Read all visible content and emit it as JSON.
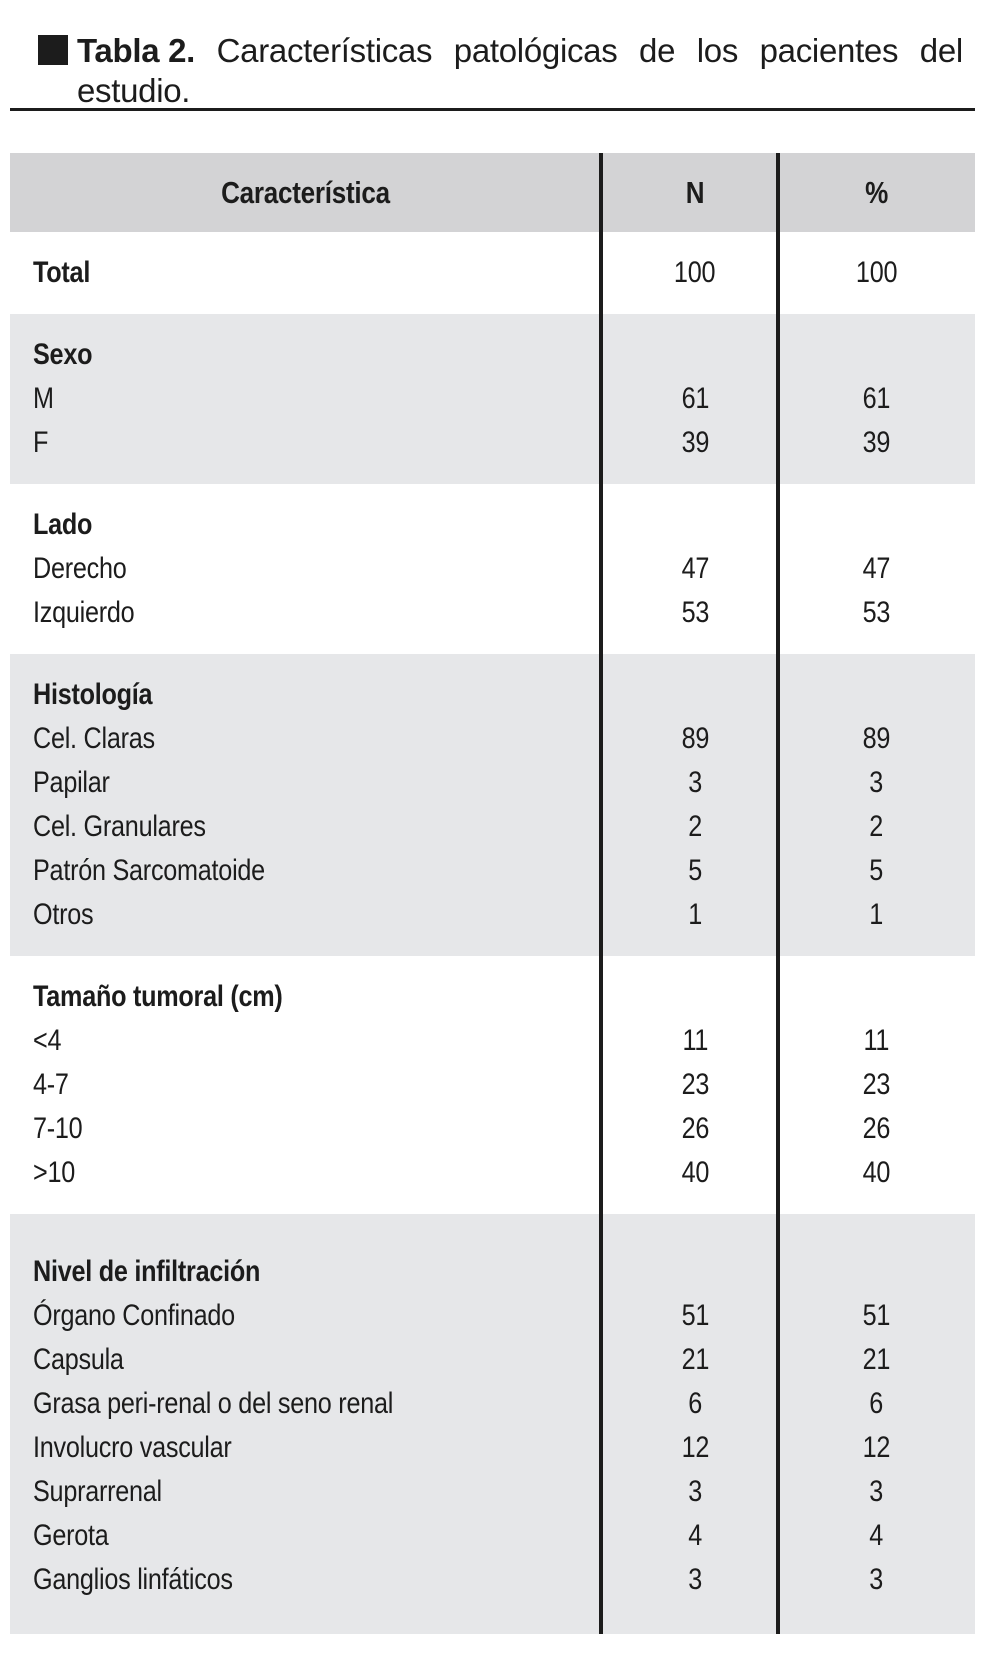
{
  "title": {
    "bold": "Tabla 2.",
    "rest": "Características patológicas de los pacientes del",
    "line2": "estudio."
  },
  "icons": {
    "caption_marker": "black-square"
  },
  "table": {
    "header": {
      "characteristic": "Característica",
      "n": "N",
      "pct": "%"
    },
    "sections": [
      {
        "rows": [
          {
            "label": "Total",
            "bold": true,
            "n": "100",
            "pct": "100"
          }
        ]
      },
      {
        "rows": [
          {
            "label": "Sexo",
            "bold": true
          },
          {
            "label": "M",
            "n": "61",
            "pct": "61"
          },
          {
            "label": "F",
            "n": "39",
            "pct": "39"
          }
        ]
      },
      {
        "rows": [
          {
            "label": "Lado",
            "bold": true
          },
          {
            "label": "Derecho",
            "n": "47",
            "pct": "47"
          },
          {
            "label": "Izquierdo",
            "n": "53",
            "pct": "53"
          }
        ]
      },
      {
        "rows": [
          {
            "label": "Histología",
            "bold": true
          },
          {
            "label": "Cel. Claras",
            "n": "89",
            "pct": "89"
          },
          {
            "label": "Papilar",
            "n": "3",
            "pct": "3"
          },
          {
            "label": "Cel. Granulares",
            "n": "2",
            "pct": "2"
          },
          {
            "label": "Patrón Sarcomatoide",
            "n": "5",
            "pct": "5"
          },
          {
            "label": "Otros",
            "n": "1",
            "pct": "1"
          }
        ]
      },
      {
        "rows": [
          {
            "label": "Tamaño tumoral (cm)",
            "bold": true
          },
          {
            "label": "<4",
            "n": "11",
            "pct": "11"
          },
          {
            "label": "4-7",
            "n": "23",
            "pct": "23"
          },
          {
            "label": "7-10",
            "n": "26",
            "pct": "26"
          },
          {
            "label": ">10",
            "n": "40",
            "pct": "40"
          }
        ]
      },
      {
        "rows": [
          {
            "label": "Nivel de infiltración",
            "bold": true
          },
          {
            "label": "Órgano Confinado",
            "n": "51",
            "pct": "51"
          },
          {
            "label": "Capsula",
            "n": "21",
            "pct": "21"
          },
          {
            "label": "Grasa peri-renal o del seno renal",
            "n": "6",
            "pct": "6"
          },
          {
            "label": "Involucro vascular",
            "n": "12",
            "pct": "12"
          },
          {
            "label": "Suprarrenal",
            "n": "3",
            "pct": "3"
          },
          {
            "label": "Gerota",
            "n": "4",
            "pct": "4"
          },
          {
            "label": "Ganglios linfáticos",
            "n": "3",
            "pct": "3"
          }
        ]
      }
    ]
  },
  "colors": {
    "ink": "#1c1c1c",
    "header_bg": "#d3d3d5",
    "section_bg": "#e6e7e9",
    "paper": "#ffffff"
  }
}
